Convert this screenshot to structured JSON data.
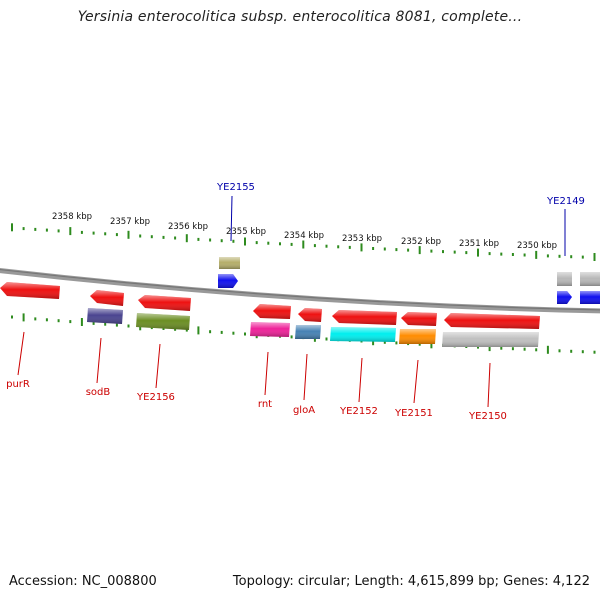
{
  "title": "Yersinia enterocolitica subsp. enterocolitica 8081, complete...",
  "footer": {
    "accession": "Accession: NC_008800",
    "summary": "Topology: circular; Length: 4,615,899 bp; Genes: 4,122"
  },
  "colors": {
    "backbone": "#8a8a8a",
    "tick_ruler": "#2e8b1e",
    "label_bottom": "#cc0000",
    "label_top": "#0000aa",
    "red_gene": "#ee1111"
  },
  "ruler_labels": [
    "2358 kbp",
    "2357 kbp",
    "2356 kbp",
    "2355 kbp",
    "2354 kbp",
    "2353 kbp",
    "2352 kbp",
    "2351 kbp",
    "2350 kbp"
  ],
  "genes_top": [
    {
      "name": "YE2155",
      "color": "#1010ee",
      "direction": "forward",
      "product_color": "#b5ae6a"
    },
    {
      "name": "YE2149",
      "color": "#1010ee",
      "direction": "forward",
      "product_color": "#b8b8b8"
    }
  ],
  "genes_bottom": [
    {
      "name": "purR",
      "color": "#ee1111",
      "direction": "reverse"
    },
    {
      "name": "sodB",
      "color": "#ee1111",
      "direction": "reverse",
      "product_color": "#4a4590"
    },
    {
      "name": "YE2156",
      "color": "#ee1111",
      "direction": "reverse",
      "product_color": "#6b8e23"
    },
    {
      "name": "rnt",
      "color": "#ee1111",
      "direction": "reverse",
      "product_color": "#ee2299"
    },
    {
      "name": "gloA",
      "color": "#ee1111",
      "direction": "reverse",
      "product_color": "#4682b4"
    },
    {
      "name": "YE2152",
      "color": "#ee1111",
      "direction": "reverse",
      "product_color": "#00eeee"
    },
    {
      "name": "YE2151",
      "color": "#ee1111",
      "direction": "reverse",
      "product_color": "#ff8c00"
    },
    {
      "name": "YE2150",
      "color": "#ee1111",
      "direction": "reverse",
      "product_color": "#c0c0c0"
    }
  ]
}
